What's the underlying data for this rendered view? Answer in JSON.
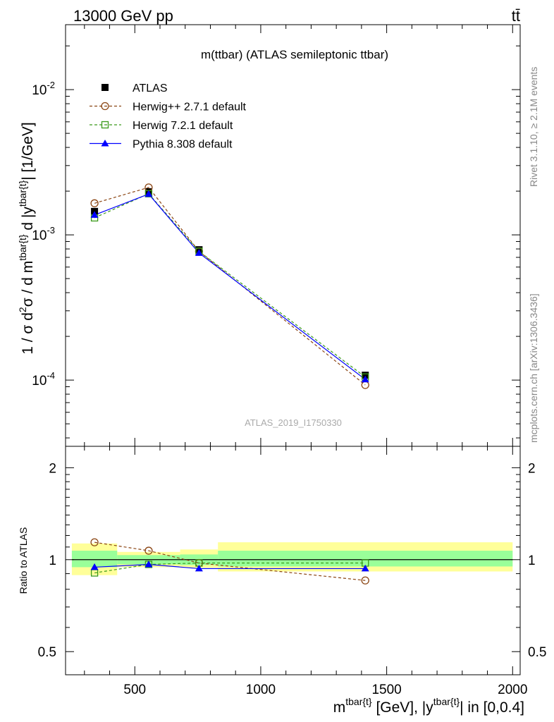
{
  "header": {
    "left": "13000 GeV pp",
    "right": "tt̄"
  },
  "side_labels": {
    "rivet": "Rivet 3.1.10, ≥ 2.1M events",
    "mcplots": "mcplots.cern.ch [arXiv:1306.3436]"
  },
  "chart_data": [
    {
      "type": "line",
      "panel": "main",
      "title": "m(ttbar) (ATLAS semileptonic ttbar)",
      "watermark": "ATLAS_2019_I1750330",
      "ylabel": "1 / σ d²σ / d m^{tbar{t}} d |y^{tbar{t}}| [1/GeV]",
      "yscale": "log",
      "xlim": [
        225,
        2030
      ],
      "ylim": [
        3.5e-05,
        0.028
      ],
      "ytick_labels": [
        "10^{-4}",
        "10^{-3}",
        "10^{-2}"
      ],
      "grid": false,
      "legend_position": "top-left",
      "x": [
        340,
        555,
        755,
        1415
      ],
      "series": [
        {
          "name": "ATLAS",
          "style": "data",
          "color": "#000000",
          "marker": "square-filled",
          "values": [
            0.00145,
            0.00198,
            0.00079,
            0.000108
          ]
        },
        {
          "name": "Herwig++ 2.7.1 default",
          "style": "dashed",
          "color": "#8b4513",
          "marker": "circle-open",
          "values": [
            0.00165,
            0.00212,
            0.00077,
            9.25e-05
          ]
        },
        {
          "name": "Herwig 7.2.1 default",
          "style": "dashed",
          "color": "#3a9a1a",
          "marker": "square-open",
          "values": [
            0.00131,
            0.00192,
            0.00077,
            0.000105
          ]
        },
        {
          "name": "Pythia 8.308 default",
          "style": "solid",
          "color": "#0000ff",
          "marker": "triangle-filled",
          "values": [
            0.00137,
            0.00191,
            0.00075,
            0.000101
          ]
        }
      ]
    },
    {
      "type": "line",
      "panel": "ratio",
      "ylabel": "Ratio to ATLAS",
      "xlabel": "m^{tbar{t}} [GeV], |y^{tbar{t}}| in [0,0.4]",
      "yscale": "log",
      "xlim": [
        225,
        2030
      ],
      "ylim": [
        0.42,
        2.35
      ],
      "xtick_labels": [
        "500",
        "1000",
        "1500",
        "2000"
      ],
      "ytick_labels": [
        "0.5",
        "1",
        "2"
      ],
      "bands": [
        {
          "x": [
            250,
            430
          ],
          "outer": [
            0.89,
            1.13
          ],
          "inner": [
            0.945,
            1.07
          ]
        },
        {
          "x": [
            430,
            680
          ],
          "outer": [
            0.945,
            1.06
          ],
          "inner": [
            0.965,
            1.035
          ]
        },
        {
          "x": [
            680,
            830
          ],
          "outer": [
            0.94,
            1.08
          ],
          "inner": [
            0.96,
            1.04
          ]
        },
        {
          "x": [
            830,
            2000
          ],
          "outer": [
            0.915,
            1.14
          ],
          "inner": [
            0.95,
            1.07
          ]
        }
      ],
      "x": [
        340,
        555,
        755,
        1415
      ],
      "series": [
        {
          "name": "Herwig++ 2.7.1 default",
          "style": "dashed",
          "color": "#8b4513",
          "marker": "circle-open",
          "values": [
            1.14,
            1.07,
            0.975,
            0.855
          ]
        },
        {
          "name": "Herwig 7.2.1 default",
          "style": "dashed",
          "color": "#3a9a1a",
          "marker": "square-open",
          "values": [
            0.905,
            0.965,
            0.975,
            0.975
          ]
        },
        {
          "name": "Pythia 8.308 default",
          "style": "solid",
          "color": "#0000ff",
          "marker": "triangle-filled",
          "values": [
            0.945,
            0.965,
            0.935,
            0.935
          ]
        }
      ]
    }
  ]
}
